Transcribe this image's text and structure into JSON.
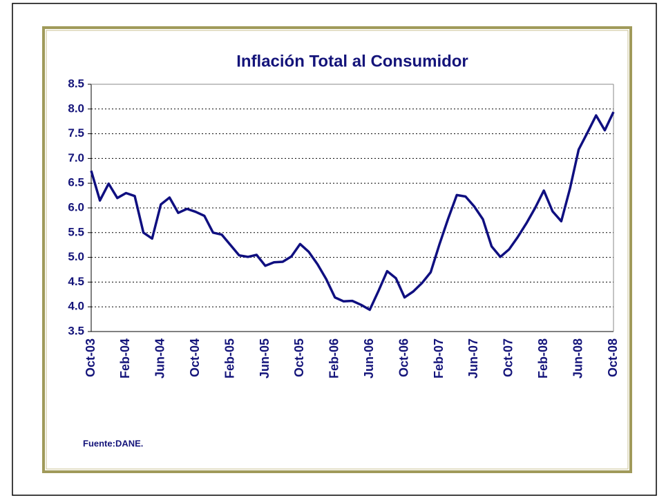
{
  "chart_data": {
    "type": "line",
    "title": "Inflación Total al Consumidor",
    "source": "Fuente:DANE.",
    "categories": [
      "Oct-03",
      null,
      null,
      null,
      "Feb-04",
      null,
      null,
      null,
      "Jun-04",
      null,
      null,
      null,
      "Oct-04",
      null,
      null,
      null,
      "Feb-05",
      null,
      null,
      null,
      "Jun-05",
      null,
      null,
      null,
      "Oct-05",
      null,
      null,
      null,
      "Feb-06",
      null,
      null,
      null,
      "Jun-06",
      null,
      null,
      null,
      "Oct-06",
      null,
      null,
      null,
      "Feb-07",
      null,
      null,
      null,
      "Jun-07",
      null,
      null,
      null,
      "Oct-07",
      null,
      null,
      null,
      "Feb-08",
      null,
      null,
      null,
      "Jun-08",
      null,
      null,
      null,
      "Oct-08"
    ],
    "values": [
      6.75,
      6.15,
      6.49,
      6.2,
      6.3,
      6.24,
      5.5,
      5.38,
      6.07,
      6.21,
      5.9,
      5.98,
      5.92,
      5.84,
      5.5,
      5.46,
      5.25,
      5.04,
      5.01,
      5.05,
      4.83,
      4.9,
      4.91,
      5.02,
      5.27,
      5.11,
      4.86,
      4.56,
      4.19,
      4.11,
      4.12,
      4.04,
      3.94,
      4.32,
      4.72,
      4.58,
      4.19,
      4.31,
      4.48,
      4.7,
      5.26,
      5.78,
      6.26,
      6.23,
      6.03,
      5.77,
      5.22,
      5.01,
      5.16,
      5.41,
      5.69,
      6.0,
      6.35,
      5.93,
      5.73,
      6.39,
      7.18,
      7.52,
      7.87,
      7.57,
      7.94
    ],
    "color": "#0f0f80",
    "ylim": [
      3.5,
      8.5
    ],
    "yticks": [
      3.5,
      {
        "value": 4,
        "label": "4.0"
      },
      4.5,
      {
        "value": 5,
        "label": "5.0"
      },
      5.5,
      {
        "value": 6,
        "label": "6.0"
      },
      6.5,
      {
        "value": 7,
        "label": "7.0"
      },
      7.5,
      {
        "value": 8,
        "label": "8.0"
      },
      8.5
    ],
    "grid": true
  }
}
